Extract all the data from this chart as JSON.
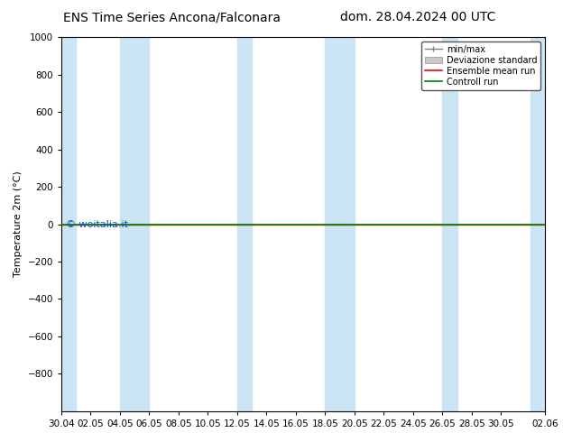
{
  "title_left": "ENS Time Series Ancona/Falconara",
  "title_right": "dom. 28.04.2024 00 UTC",
  "ylabel": "Temperature 2m (°C)",
  "ylim_top": -1000,
  "ylim_bottom": 1000,
  "yticks": [
    -800,
    -600,
    -400,
    -200,
    0,
    200,
    400,
    600,
    800,
    1000
  ],
  "xtick_labels": [
    "30.04",
    "02.05",
    "04.05",
    "06.05",
    "08.05",
    "10.05",
    "12.05",
    "14.05",
    "16.05",
    "18.05",
    "20.05",
    "22.05",
    "24.05",
    "26.05",
    "28.05",
    "30.05",
    "02.06"
  ],
  "xtick_positions": [
    0,
    2,
    4,
    6,
    8,
    10,
    12,
    14,
    16,
    18,
    20,
    22,
    24,
    26,
    28,
    30,
    33
  ],
  "xlim": [
    0,
    33
  ],
  "shaded_bands": [
    [
      0,
      1.0
    ],
    [
      4.0,
      6.0
    ],
    [
      12.0,
      13.0
    ],
    [
      18.0,
      20.0
    ],
    [
      26.0,
      27.0
    ],
    [
      32.0,
      33.0
    ]
  ],
  "shaded_color": "#cce5f5",
  "background_color": "#ffffff",
  "plot_bg_color": "#ffffff",
  "watermark": "© woitalia.it",
  "watermark_color": "#0055cc",
  "ensemble_mean_color": "#ff0000",
  "control_run_color": "#008000",
  "min_max_color": "#808080",
  "std_fill_color": "#c8c8c8",
  "font_size_title": 10,
  "font_size_ylabel": 8,
  "font_size_ticks": 7.5,
  "font_size_legend": 7,
  "legend_labels": [
    "min/max",
    "Deviazione standard",
    "Ensemble mean run",
    "Controll run"
  ]
}
